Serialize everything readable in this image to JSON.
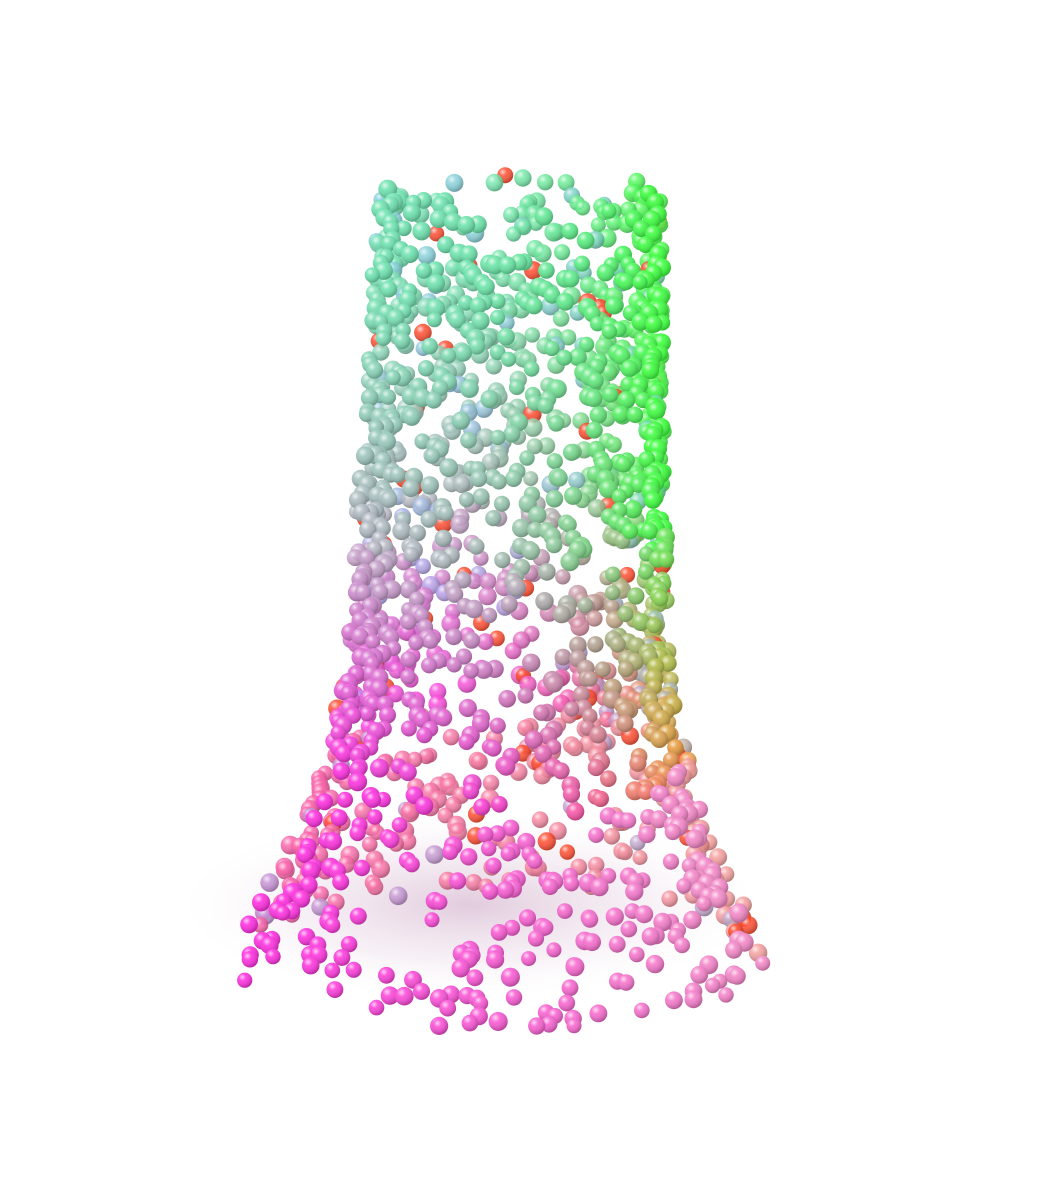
{
  "scene": {
    "subject": "point-cloud-vase",
    "background": "#ffffff",
    "palette": {
      "top": "#6fe3b0",
      "upper_right": "#3cff3c",
      "mid_left": "#b7b7c4",
      "lower_left": "#ff2fe0",
      "bottom": "#f48ac8",
      "inner_accent": "#ff3a1a",
      "inner_warm": "#f4b21a",
      "inner_cool": "#8ab8ff"
    }
  }
}
